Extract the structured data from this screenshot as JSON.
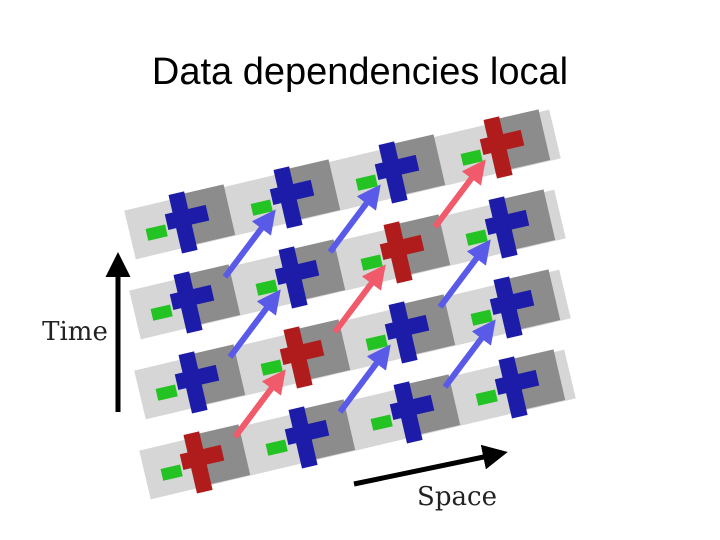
{
  "header": {
    "title": "Data dependencies local"
  },
  "diagram": {
    "time_label": "Time",
    "space_label": "Space"
  }
}
